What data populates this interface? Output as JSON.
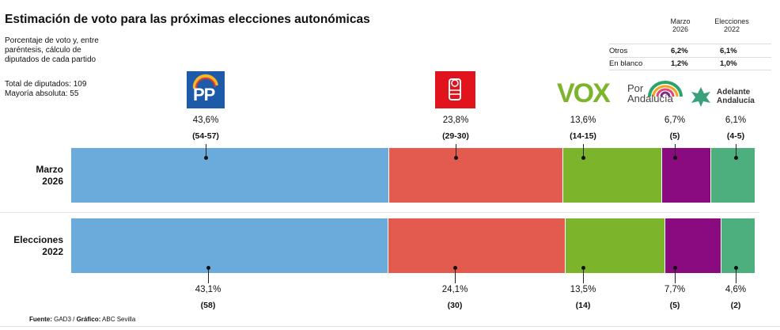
{
  "chart_data": {
    "type": "bar",
    "orientation": "horizontal-stacked",
    "title": "Estimación de voto para las próximas elecciones autonómicas",
    "subtitle": "Porcentaje de voto y, entre paréntesis, cálculo de diputados de cada partido",
    "notes": [
      "Total de diputados: 109",
      "Mayoría absoluta: 55"
    ],
    "categories": [
      "PP",
      "PSOE",
      "VOX",
      "Por Andalucía",
      "Adelante Andalucía"
    ],
    "colors": [
      "#6aabdb",
      "#e35b4f",
      "#7cb52b",
      "#8a0b7f",
      "#4caf7d"
    ],
    "series": [
      {
        "name": "Marzo 2026",
        "values": [
          43.6,
          23.8,
          13.6,
          6.7,
          6.1
        ],
        "labels": [
          "43,6%",
          "23,8%",
          "13,6%",
          "6,7%",
          "6,1%"
        ],
        "seats": [
          "(54-57)",
          "(29-30)",
          "(14-15)",
          "(5)",
          "(4-5)"
        ]
      },
      {
        "name": "Elecciones 2022",
        "values": [
          43.1,
          24.1,
          13.5,
          7.7,
          4.6
        ],
        "labels": [
          "43,1%",
          "24,1%",
          "13,5%",
          "7,7%",
          "4,6%"
        ],
        "seats": [
          "(58)",
          "(30)",
          "(14)",
          "(5)",
          "(2)"
        ]
      }
    ],
    "row_labels": [
      [
        "Marzo",
        "2026"
      ],
      [
        "Elecciones",
        "2022"
      ]
    ]
  },
  "side_table": {
    "headers": [
      [
        "Marzo",
        "2026"
      ],
      [
        "Elecciones",
        "2022"
      ]
    ],
    "rows": [
      {
        "label": "Otros",
        "v1": "6,2%",
        "v2": "6,1%"
      },
      {
        "label": "En blanco",
        "v1": "1,2%",
        "v2": "1,0%"
      }
    ]
  },
  "logos": {
    "pp": "PP",
    "vox": "VOX",
    "por1": "Por",
    "por2": "Andalucía",
    "ad1": "Adelante",
    "ad2": "Andalucía"
  },
  "source": {
    "label1": "Fuente:",
    "text1": " GAD3 / ",
    "label2": "Gráfico:",
    "text2": " ABC Sevilla"
  }
}
